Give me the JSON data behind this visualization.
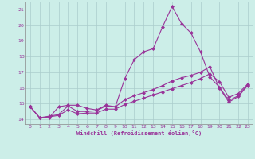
{
  "xlabel": "Windchill (Refroidissement éolien,°C)",
  "bg_color": "#cceee8",
  "grid_color": "#aacccc",
  "line_color": "#993399",
  "xlim": [
    -0.5,
    23.5
  ],
  "ylim": [
    13.7,
    21.5
  ],
  "xticks": [
    0,
    1,
    2,
    3,
    4,
    5,
    6,
    7,
    8,
    9,
    10,
    11,
    12,
    13,
    14,
    15,
    16,
    17,
    18,
    19,
    20,
    21,
    22,
    23
  ],
  "yticks": [
    14,
    15,
    16,
    17,
    18,
    19,
    20,
    21
  ],
  "line1_x": [
    0,
    1,
    2,
    3,
    4,
    5,
    6,
    7,
    8,
    9,
    10,
    11,
    12,
    13,
    14,
    15,
    16,
    17,
    18,
    19,
    20,
    21,
    22,
    23
  ],
  "line1_y": [
    14.8,
    14.1,
    14.1,
    14.8,
    14.9,
    14.9,
    14.7,
    14.6,
    14.9,
    14.8,
    16.6,
    17.8,
    18.3,
    18.5,
    19.9,
    21.2,
    20.1,
    19.5,
    18.3,
    16.7,
    16.05,
    15.2,
    15.5,
    16.2
  ],
  "line2_x": [
    0,
    1,
    2,
    3,
    4,
    5,
    6,
    7,
    8,
    9,
    10,
    11,
    12,
    13,
    14,
    15,
    16,
    17,
    18,
    19,
    20,
    21,
    22,
    23
  ],
  "line2_y": [
    14.8,
    14.1,
    14.2,
    14.3,
    14.85,
    14.5,
    14.5,
    14.55,
    14.85,
    14.8,
    15.25,
    15.5,
    15.7,
    15.9,
    16.15,
    16.45,
    16.65,
    16.8,
    17.0,
    17.35,
    16.0,
    15.1,
    15.45,
    16.15
  ],
  "line3_x": [
    0,
    1,
    2,
    3,
    4,
    5,
    6,
    7,
    8,
    9,
    10,
    11,
    12,
    13,
    14,
    15,
    16,
    17,
    18,
    19,
    20,
    21,
    22,
    23
  ],
  "line3_y": [
    14.8,
    14.1,
    14.15,
    14.25,
    14.6,
    14.35,
    14.4,
    14.4,
    14.65,
    14.65,
    14.95,
    15.15,
    15.35,
    15.55,
    15.75,
    15.95,
    16.15,
    16.35,
    16.6,
    16.9,
    16.4,
    15.4,
    15.65,
    16.25
  ]
}
